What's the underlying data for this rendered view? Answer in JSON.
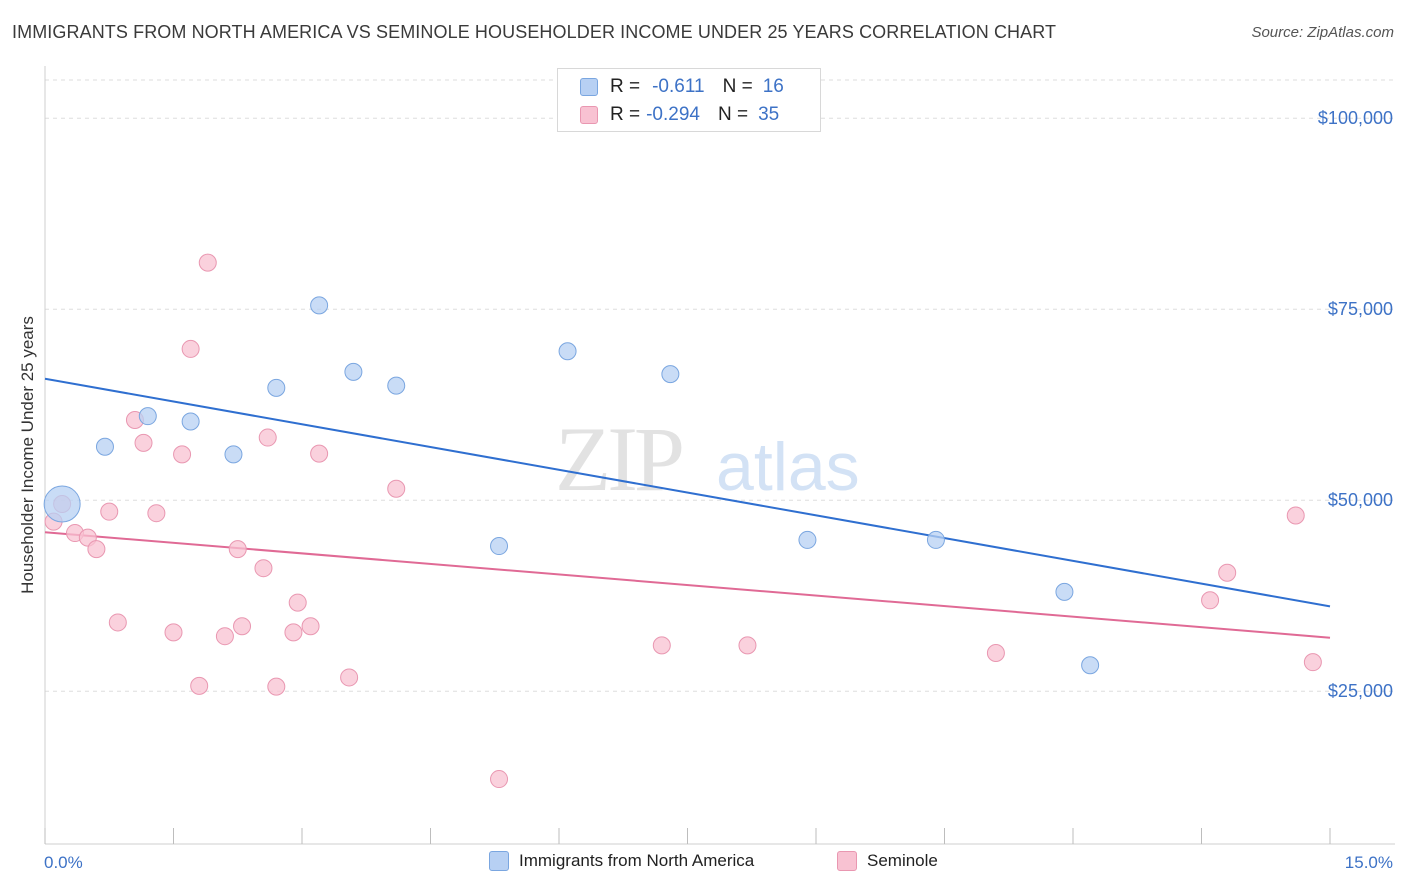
{
  "title": "IMMIGRANTS FROM NORTH AMERICA VS SEMINOLE HOUSEHOLDER INCOME UNDER 25 YEARS CORRELATION CHART",
  "source": "Source: ZipAtlas.com",
  "watermark": {
    "zip": "ZIP",
    "atlas": "atlas"
  },
  "legend_box": {
    "rows": [
      {
        "r_label": "R =",
        "r_value": "-0.611",
        "n_label": "N =",
        "n_value": "16"
      },
      {
        "r_label": "R =",
        "r_value": "-0.294",
        "n_label": "N =",
        "n_value": "35"
      }
    ]
  },
  "colors": {
    "blue_fill": "#b7d0f3",
    "blue_stroke": "#7aa6e0",
    "blue_line": "#2f6fd0",
    "pink_fill": "#f8c2d2",
    "pink_stroke": "#e997b1",
    "pink_line": "#e06a95",
    "axis_text": "#3d72c6",
    "grid": "#dddddd"
  },
  "chart_data": {
    "type": "scatter",
    "title": "IMMIGRANTS FROM NORTH AMERICA VS SEMINOLE HOUSEHOLDER INCOME UNDER 25 YEARS CORRELATION CHART",
    "xlabel": "",
    "ylabel": "Householder Income Under 25 years",
    "xlim": [
      0,
      15
    ],
    "ylim": [
      5000,
      105000
    ],
    "x_tick_labels": [
      "0.0%",
      "15.0%"
    ],
    "y_ticks": [
      25000,
      50000,
      75000,
      100000
    ],
    "y_tick_labels": [
      "$25,000",
      "$50,000",
      "$75,000",
      "$100,000"
    ],
    "grid": true,
    "legend_position": "bottom",
    "series": [
      {
        "name": "Immigrants from North America",
        "color": "#b7d0f3",
        "points": [
          {
            "x": 0.2,
            "y": 49500,
            "big": true
          },
          {
            "x": 0.7,
            "y": 57000
          },
          {
            "x": 1.2,
            "y": 61000
          },
          {
            "x": 1.7,
            "y": 60300
          },
          {
            "x": 2.2,
            "y": 56000
          },
          {
            "x": 2.7,
            "y": 64700
          },
          {
            "x": 3.2,
            "y": 75500
          },
          {
            "x": 3.6,
            "y": 66800
          },
          {
            "x": 4.1,
            "y": 65000
          },
          {
            "x": 5.3,
            "y": 44000
          },
          {
            "x": 6.1,
            "y": 69500
          },
          {
            "x": 7.3,
            "y": 66500
          },
          {
            "x": 8.9,
            "y": 44800
          },
          {
            "x": 10.4,
            "y": 44800
          },
          {
            "x": 11.9,
            "y": 38000
          },
          {
            "x": 12.2,
            "y": 28400
          }
        ],
        "trend": {
          "x": [
            0,
            15
          ],
          "y": [
            65900,
            36100
          ]
        }
      },
      {
        "name": "Seminole",
        "color": "#f8c2d2",
        "points": [
          {
            "x": 0.1,
            "y": 47200
          },
          {
            "x": 0.2,
            "y": 49500
          },
          {
            "x": 0.35,
            "y": 45700
          },
          {
            "x": 0.5,
            "y": 45100
          },
          {
            "x": 0.6,
            "y": 43600
          },
          {
            "x": 0.75,
            "y": 48500
          },
          {
            "x": 0.85,
            "y": 34000
          },
          {
            "x": 1.05,
            "y": 60500
          },
          {
            "x": 1.15,
            "y": 57500
          },
          {
            "x": 1.3,
            "y": 48300
          },
          {
            "x": 1.5,
            "y": 32700
          },
          {
            "x": 1.6,
            "y": 56000
          },
          {
            "x": 1.7,
            "y": 69800
          },
          {
            "x": 1.8,
            "y": 25700
          },
          {
            "x": 1.9,
            "y": 81100
          },
          {
            "x": 2.1,
            "y": 32200
          },
          {
            "x": 2.25,
            "y": 43600
          },
          {
            "x": 2.3,
            "y": 33500
          },
          {
            "x": 2.55,
            "y": 41100
          },
          {
            "x": 2.6,
            "y": 58200
          },
          {
            "x": 2.7,
            "y": 25600
          },
          {
            "x": 2.9,
            "y": 32700
          },
          {
            "x": 2.95,
            "y": 36600
          },
          {
            "x": 3.1,
            "y": 33500
          },
          {
            "x": 3.2,
            "y": 56100
          },
          {
            "x": 3.55,
            "y": 26800
          },
          {
            "x": 4.1,
            "y": 51500
          },
          {
            "x": 5.3,
            "y": 13500
          },
          {
            "x": 7.2,
            "y": 31000
          },
          {
            "x": 8.2,
            "y": 31000
          },
          {
            "x": 11.1,
            "y": 30000
          },
          {
            "x": 13.6,
            "y": 36900
          },
          {
            "x": 13.8,
            "y": 40500
          },
          {
            "x": 14.6,
            "y": 48000
          },
          {
            "x": 14.8,
            "y": 28800
          }
        ],
        "trend": {
          "x": [
            0,
            15
          ],
          "y": [
            45800,
            32000
          ]
        }
      }
    ]
  }
}
